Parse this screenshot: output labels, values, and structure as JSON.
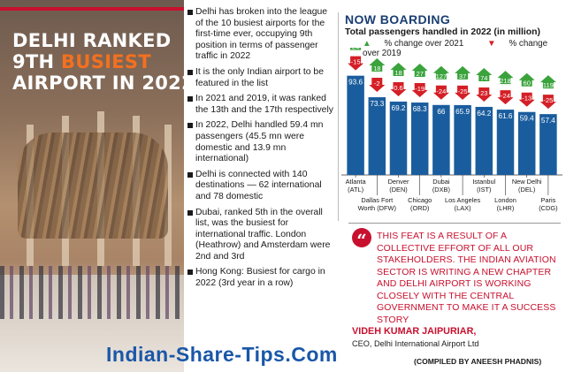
{
  "headline": {
    "line1": "DELHI RANKED",
    "line2_a": "9TH ",
    "line2_b": "BUSIEST",
    "line3": "AIRPORT IN 2022"
  },
  "bullets": [
    "Delhi has broken into the league of the 10 busiest airports for the first-time ever, occupying 9th position in terms of passenger traffic in 2022",
    "It is the only Indian airport to be featured in the list",
    "In 2021 and 2019, it was ranked the 13th and the 17th respectively",
    "In 2022, Delhi handled 59.4 mn passengers (45.5 mn were domestic and 13.9 mn international)",
    "Delhi is connected with 140 destinations — 62 international and 78 domestic",
    "Dubai, ranked 5th in the overall list, was the busiest for international traffic. London (Heathrow) and Amsterdam were 2nd and 3rd",
    "Hong Kong: Busiest for cargo in 2022 (3rd year in a row)"
  ],
  "chart_data": {
    "type": "bar",
    "title": "NOW BOARDING",
    "subtitle": "Total passengers handled in 2022 (in million)",
    "legend": [
      "% change over 2021",
      "% change over 2019"
    ],
    "colors": {
      "bar": "#1a5d9e",
      "up": "#3aa33c",
      "down": "#d41f26"
    },
    "categories": [
      {
        "name": "Atlanta",
        "code": "(ATL)",
        "row": "top"
      },
      {
        "name": "Dallas Fort",
        "code": "Worth (DFW)",
        "row": "bottom"
      },
      {
        "name": "Denver",
        "code": "(DEN)",
        "row": "top"
      },
      {
        "name": "Chicago",
        "code": "(ORD)",
        "row": "bottom"
      },
      {
        "name": "Dubai",
        "code": "(DXB)",
        "row": "top"
      },
      {
        "name": "Los Angeles",
        "code": "(LAX)",
        "row": "bottom"
      },
      {
        "name": "Istanbul",
        "code": "(IST)",
        "row": "top"
      },
      {
        "name": "London",
        "code": "(LHR)",
        "row": "bottom"
      },
      {
        "name": "New Delhi",
        "code": "(DEL)",
        "row": "top"
      },
      {
        "name": "Paris",
        "code": "(CDG)",
        "row": "bottom"
      }
    ],
    "values": [
      93.6,
      73.3,
      69.2,
      68.3,
      66,
      65.9,
      64.2,
      61.6,
      59.4,
      57.4
    ],
    "value_labels": [
      "93.6",
      "73.3",
      "69.2",
      "68.3",
      "66",
      "65.9",
      "64.2",
      "61.6",
      "59.4",
      "57.4"
    ],
    "change_2021": [
      "24",
      "18",
      "18",
      "27",
      "127",
      "37",
      "74",
      "218",
      "60",
      "119"
    ],
    "change_2019": [
      "-15",
      "-2",
      "0.6",
      "-19",
      "-24",
      "-25",
      "23",
      "-24",
      "-13",
      "-25"
    ],
    "ylim": [
      0,
      100
    ]
  },
  "quote": {
    "mark": "“",
    "text": "This feat is a result of a collective effort of all our stakeholders. The Indian aviation sector is writing a new chapter and Delhi Airport is working closely with the central government to make it a success story",
    "speaker": "VIDEH KUMAR JAIPURIAR,",
    "role": "CEO, Delhi International Airport Ltd"
  },
  "credit": "(COMPILED BY ANEESH PHADNIS)",
  "watermark": "Indian-Share-Tips.Com"
}
